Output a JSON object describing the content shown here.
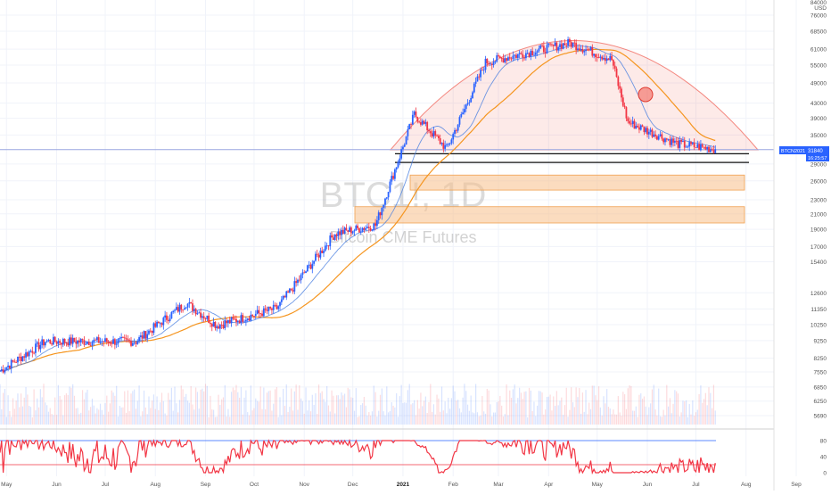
{
  "watermark": {
    "symbol": "BTC1!, 1D",
    "subtitle": "Bitcoin CME Futures"
  },
  "price_axis": {
    "currency": "USD",
    "top_label": "84000",
    "ticks": [
      "76000",
      "68500",
      "61000",
      "55000",
      "49000",
      "43000",
      "39000",
      "35000",
      "29000",
      "26000",
      "23000",
      "21000",
      "19000",
      "17000",
      "15400",
      "12600",
      "11350",
      "10250",
      "9250",
      "8250",
      "7550",
      "6850",
      "6250",
      "5690"
    ]
  },
  "price_tag": {
    "symbol": "BTCN2021",
    "price": "31840",
    "countdown": "16:25:57"
  },
  "oscillator": {
    "ticks": [
      "80",
      "40",
      "0"
    ],
    "upper_level": 80,
    "lower_level": 20
  },
  "time_axis": [
    "May",
    "Jun",
    "Jul",
    "Aug",
    "Sep",
    "Oct",
    "Nov",
    "Dec",
    "2021",
    "Feb",
    "Mar",
    "Apr",
    "May",
    "Jun",
    "Jul",
    "Aug",
    "Sep"
  ],
  "chart_data": {
    "type": "candlestick",
    "series": [
      {
        "start": "2020-04-27",
        "end": "2020-05-25",
        "close_start": 7600,
        "close_end": 9200
      },
      {
        "start": "2020-05-25",
        "end": "2020-07-20",
        "close_start": 9200,
        "close_end": 9200
      },
      {
        "start": "2020-07-20",
        "end": "2020-08-20",
        "close_start": 9200,
        "close_end": 11800
      },
      {
        "start": "2020-08-20",
        "end": "2020-09-08",
        "close_start": 11800,
        "close_end": 10200
      },
      {
        "start": "2020-09-08",
        "end": "2020-10-15",
        "close_start": 10200,
        "close_end": 11400
      },
      {
        "start": "2020-10-15",
        "end": "2020-11-20",
        "close_start": 11400,
        "close_end": 18500
      },
      {
        "start": "2020-11-20",
        "end": "2020-12-15",
        "close_start": 18500,
        "close_end": 19500
      },
      {
        "start": "2020-12-15",
        "end": "2021-01-08",
        "close_start": 19500,
        "close_end": 40000
      },
      {
        "start": "2021-01-08",
        "end": "2021-01-28",
        "close_start": 40000,
        "close_end": 32000
      },
      {
        "start": "2021-01-28",
        "end": "2021-02-21",
        "close_start": 32000,
        "close_end": 56000
      },
      {
        "start": "2021-02-21",
        "end": "2021-04-14",
        "close_start": 56000,
        "close_end": 63500
      },
      {
        "start": "2021-04-14",
        "end": "2021-05-10",
        "close_start": 63500,
        "close_end": 57000
      },
      {
        "start": "2021-05-10",
        "end": "2021-05-20",
        "close_start": 57000,
        "close_end": 38000
      },
      {
        "start": "2021-05-20",
        "end": "2021-06-20",
        "close_start": 38000,
        "close_end": 33000
      },
      {
        "start": "2021-06-20",
        "end": "2021-07-14",
        "close_start": 33000,
        "close_end": 31840
      }
    ],
    "ylim": [
      5500,
      84000
    ],
    "y_scale": "log",
    "grid": true,
    "support_lines": [
      31000,
      29300
    ],
    "zones": [
      [
        24500,
        27000
      ],
      [
        19800,
        22000
      ]
    ]
  },
  "colors": {
    "up": "#2962ff",
    "down": "#f23645",
    "ma_fast": "#4a7fe0",
    "ma_slow": "#f5951f",
    "arc": "#f05a4f",
    "zone": "#f7c08a",
    "osc": "#2962ff"
  }
}
